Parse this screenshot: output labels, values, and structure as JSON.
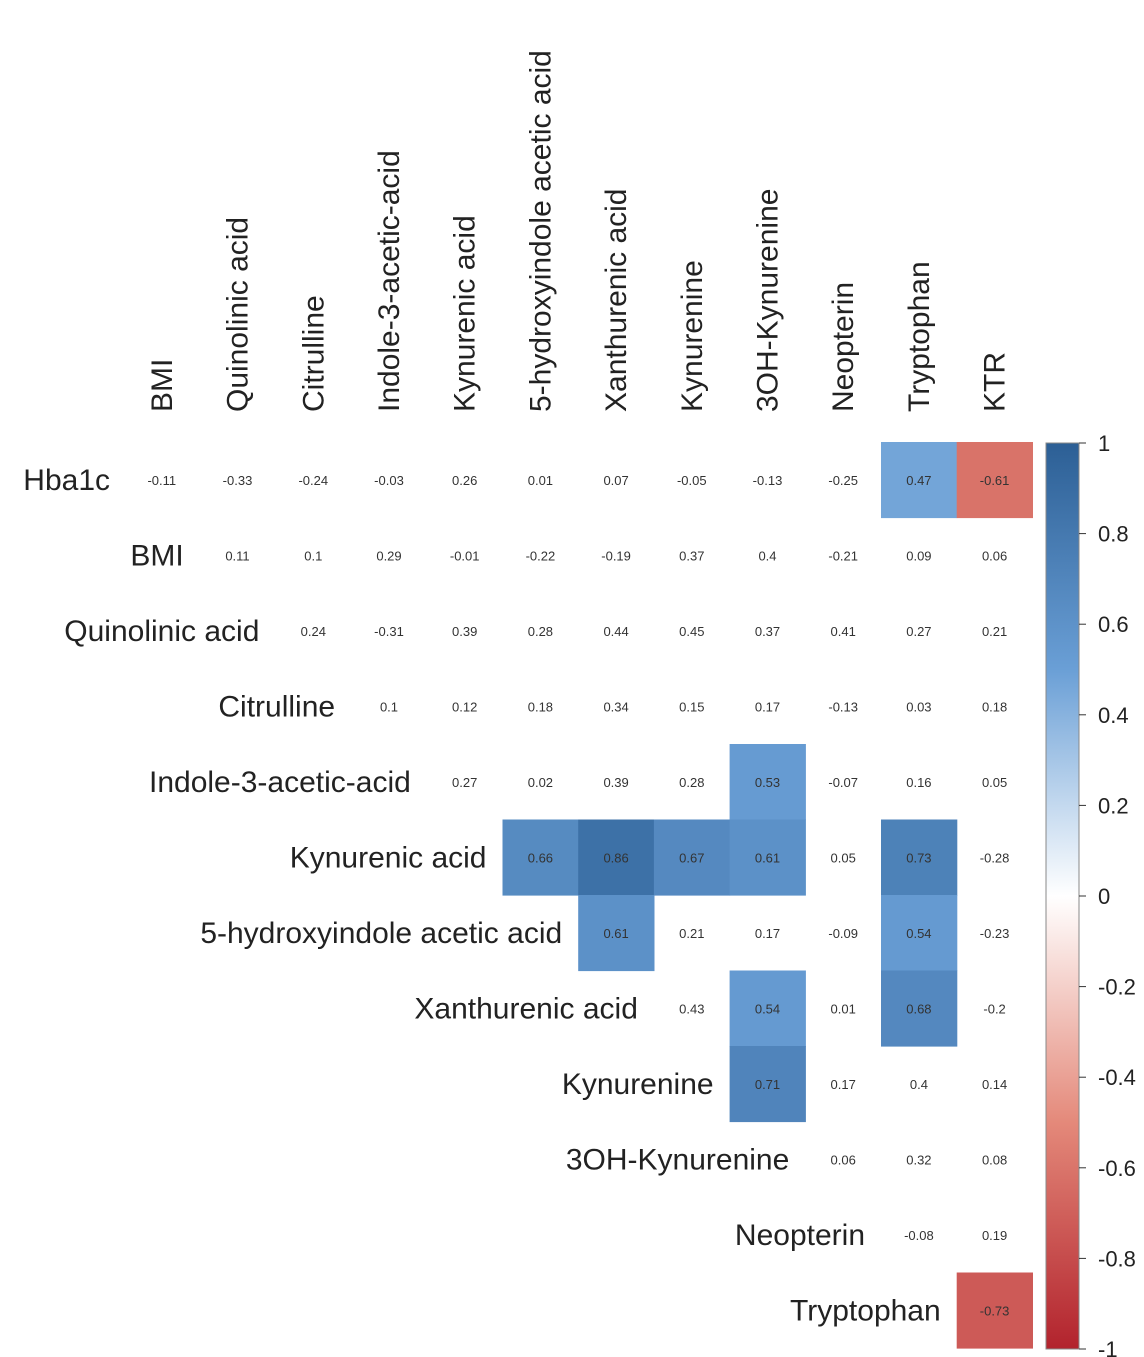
{
  "chart_data": {
    "type": "heatmap",
    "rows": [
      "Hba1c",
      "BMI",
      "Quinolinic acid",
      "Citrulline",
      "Indole-3-acetic-acid",
      "Kynurenic acid",
      "5-hydroxyindole acetic acid",
      "Xanthurenic acid",
      "Kynurenine",
      "3OH-Kynurenine",
      "Neopterin",
      "Tryptophan"
    ],
    "columns": [
      "BMI",
      "Quinolinic acid",
      "Citrulline",
      "Indole-3-acetic-acid",
      "Kynurenic acid",
      "5-hydroxyindole acetic acid",
      "Xanthurenic acid",
      "Kynurenine",
      "3OH-Kynurenine",
      "Neopterin",
      "Tryptophan",
      "KTR"
    ],
    "matrix": [
      [
        -0.11,
        -0.33,
        -0.24,
        -0.03,
        0.26,
        0.01,
        0.07,
        -0.05,
        -0.13,
        -0.25,
        0.47,
        -0.61
      ],
      [
        null,
        0.11,
        0.1,
        0.29,
        -0.01,
        -0.22,
        -0.19,
        0.37,
        0.4,
        -0.21,
        0.09,
        0.06
      ],
      [
        null,
        null,
        0.24,
        -0.31,
        0.39,
        0.28,
        0.44,
        0.45,
        0.37,
        0.41,
        0.27,
        0.21
      ],
      [
        null,
        null,
        null,
        0.1,
        0.12,
        0.18,
        0.34,
        0.15,
        0.17,
        -0.13,
        0.03,
        0.18
      ],
      [
        null,
        null,
        null,
        null,
        0.27,
        0.02,
        0.39,
        0.28,
        0.53,
        -0.07,
        0.16,
        0.05
      ],
      [
        null,
        null,
        null,
        null,
        null,
        0.66,
        0.86,
        0.67,
        0.61,
        0.05,
        0.73,
        -0.28
      ],
      [
        null,
        null,
        null,
        null,
        null,
        null,
        0.61,
        0.21,
        0.17,
        -0.09,
        0.54,
        -0.23
      ],
      [
        null,
        null,
        null,
        null,
        null,
        null,
        null,
        0.43,
        0.54,
        0.01,
        0.68,
        -0.2
      ],
      [
        null,
        null,
        null,
        null,
        null,
        null,
        null,
        null,
        0.71,
        0.17,
        0.4,
        0.14
      ],
      [
        null,
        null,
        null,
        null,
        null,
        null,
        null,
        null,
        null,
        0.06,
        0.32,
        0.08
      ],
      [
        null,
        null,
        null,
        null,
        null,
        null,
        null,
        null,
        null,
        null,
        -0.08,
        0.19
      ],
      [
        null,
        null,
        null,
        null,
        null,
        null,
        null,
        null,
        null,
        null,
        null,
        -0.73
      ]
    ],
    "shaded_cells": [
      [
        0,
        10
      ],
      [
        0,
        11
      ],
      [
        4,
        8
      ],
      [
        5,
        5
      ],
      [
        5,
        6
      ],
      [
        5,
        7
      ],
      [
        5,
        8
      ],
      [
        5,
        10
      ],
      [
        6,
        6
      ],
      [
        6,
        10
      ],
      [
        7,
        8
      ],
      [
        7,
        10
      ],
      [
        8,
        8
      ],
      [
        11,
        11
      ]
    ],
    "legend": {
      "position": "right",
      "ticks": [
        "1",
        "0.8",
        "0.6",
        "0.4",
        "0.2",
        "0",
        "-0.2",
        "-0.4",
        "-0.6",
        "-0.8",
        "-1"
      ],
      "range": [
        -1,
        1
      ],
      "colors": {
        "positive": "#2f6bae",
        "zero": "#ffffff",
        "negative": "#b2182b"
      }
    }
  }
}
